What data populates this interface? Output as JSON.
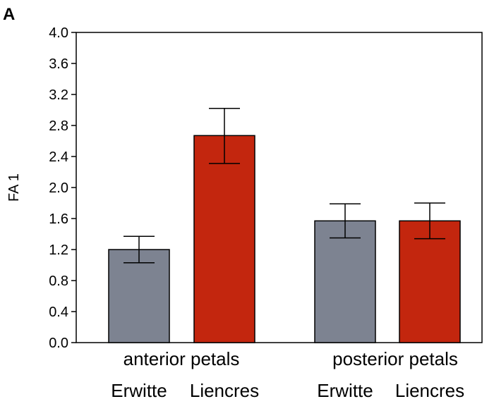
{
  "panel_label": "A",
  "chart_data": {
    "type": "bar",
    "ylabel": "FA 1",
    "ylim": [
      0,
      4.0
    ],
    "yticks": [
      "0.0",
      "0.4",
      "0.8",
      "1.2",
      "1.6",
      "2.0",
      "2.4",
      "2.8",
      "3.2",
      "3.6",
      "4.0"
    ],
    "groups": [
      {
        "label": "anterior petals",
        "bars": [
          {
            "category": "Erwitte",
            "value": 1.2,
            "err_low": 1.03,
            "err_high": 1.37
          },
          {
            "category": "Liencres",
            "value": 2.67,
            "err_low": 2.31,
            "err_high": 3.02
          }
        ]
      },
      {
        "label": "posterior petals",
        "bars": [
          {
            "category": "Erwitte",
            "value": 1.57,
            "err_low": 1.35,
            "err_high": 1.79
          },
          {
            "category": "Liencres",
            "value": 1.57,
            "err_low": 1.34,
            "err_high": 1.8
          }
        ]
      }
    ],
    "colors": {
      "Erwitte": "#7d8391",
      "Liencres": "#c3260e"
    },
    "grid": false,
    "legend": "none"
  }
}
